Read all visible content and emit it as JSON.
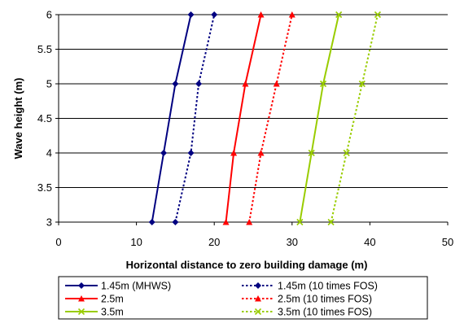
{
  "chart_data": {
    "type": "line",
    "title": "",
    "xlabel": "Horizontal distance to zero building damage (m)",
    "ylabel": "Wave height (m)",
    "xlim": [
      0,
      50
    ],
    "ylim": [
      3,
      6
    ],
    "xticks": [
      "0",
      "10",
      "20",
      "30",
      "40",
      "50"
    ],
    "yticks": [
      "3",
      "3.5",
      "4",
      "4.5",
      "5",
      "5.5",
      "6"
    ],
    "grid": "horizontal",
    "legend_position": "bottom",
    "y": [
      3,
      4,
      5,
      6
    ],
    "series": [
      {
        "name": "1.45m (MHWS)",
        "x": [
          12.0,
          13.5,
          15.0,
          17.0
        ],
        "color": "#000080",
        "marker": "diamond",
        "dash": "solid"
      },
      {
        "name": "1.45m (10 times FOS)",
        "x": [
          15.0,
          17.0,
          18.0,
          20.0
        ],
        "color": "#000080",
        "marker": "diamond",
        "dash": "dotted"
      },
      {
        "name": "2.5m",
        "x": [
          21.5,
          22.5,
          24.0,
          26.0
        ],
        "color": "#ff0000",
        "marker": "triangle",
        "dash": "solid"
      },
      {
        "name": "2.5m (10 times FOS)",
        "x": [
          24.5,
          26.0,
          28.0,
          30.0
        ],
        "color": "#ff0000",
        "marker": "triangle",
        "dash": "dotted"
      },
      {
        "name": "3.5m",
        "x": [
          31.0,
          32.5,
          34.0,
          36.0
        ],
        "color": "#99cc00",
        "marker": "x",
        "dash": "solid"
      },
      {
        "name": "3.5m (10 times FOS)",
        "x": [
          35.0,
          37.0,
          39.0,
          41.0
        ],
        "color": "#99cc00",
        "marker": "x",
        "dash": "dotted"
      }
    ]
  }
}
